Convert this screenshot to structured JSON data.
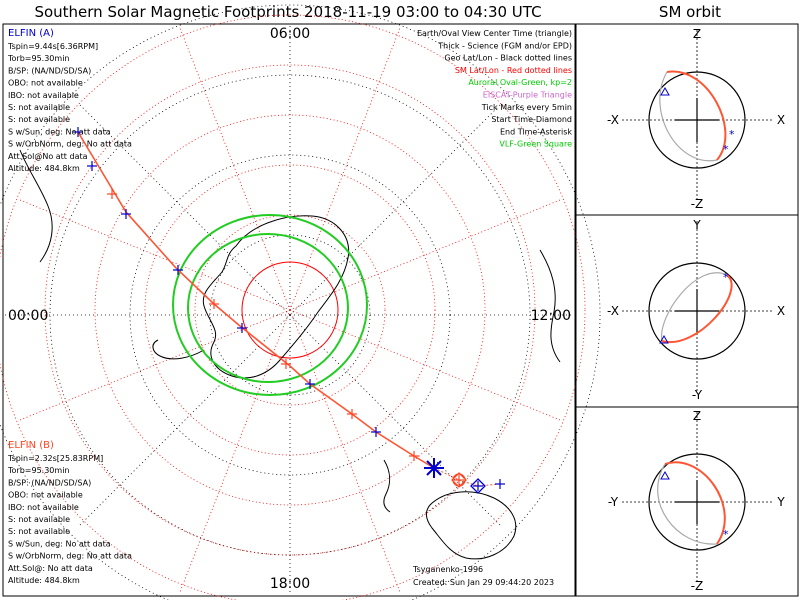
{
  "header": {
    "title": "Southern Solar Magnetic Footprints 2018-11-19 03:00 to 04:30 UTC",
    "right_title": "SM orbit"
  },
  "map": {
    "time_labels": {
      "top": "06:00",
      "left": "00:00",
      "right": "12:00",
      "bottom": "18:00"
    }
  },
  "elfin_a": {
    "title": "ELFIN (A)",
    "lines": [
      "Tspin=9.44s[6.36RPM]",
      "Torb=95.30min",
      "B/SP: (NA/ND/SD/SA)",
      "OBO: not available",
      "IBO: not available",
      "S: not available",
      "S: not available",
      "S w/Sun, deg: No att data",
      "S w/OrbNorm, deg: No att data",
      "Att.Sol@No att data",
      "Altitude: 484.8km"
    ]
  },
  "elfin_b": {
    "title": "ELFIN (B)",
    "lines": [
      "Tspin=2.32s[25.83RPM]",
      "Torb=95.30min",
      "B/SP: (NA/ND/SD/SA)",
      "OBO: not available",
      "IBO: not available",
      "S: not available",
      "S: not available",
      "S w/Sun, deg: No att data",
      "S w/OrbNorm, deg: No att data",
      "Att.Sol@: No att data",
      "Altitude: 484.8km"
    ]
  },
  "legend": [
    {
      "text": "Earth/Oval View Center Time (triangle)",
      "color": "#000000"
    },
    {
      "text": "Thick - Science (FGM and/or EPD)",
      "color": "#000000"
    },
    {
      "text": "Geo Lat/Lon - Black dotted lines",
      "color": "#000000"
    },
    {
      "text": "SM Lat/Lon - Red dotted lines",
      "color": "#ff0000"
    },
    {
      "text": "Auroral Oval-Green, kp=2",
      "color": "#00cc00"
    },
    {
      "text": "EISCAT-Purple Triangle",
      "color": "#cc66cc"
    },
    {
      "text": "Tick Marks every 5min",
      "color": "#000000"
    },
    {
      "text": "Start Time-Diamond",
      "color": "#000000"
    },
    {
      "text": "End Time-Asterisk",
      "color": "#000000"
    },
    {
      "text": "VLF-Green Square",
      "color": "#00cc00"
    }
  ],
  "footer": {
    "credit": "Tsyganenko-1996",
    "created": "Created: Sun Jan 29 09:44:20 2023"
  },
  "orbit_panels": [
    {
      "top": "Z",
      "bottom": "-Z",
      "left": "-X",
      "right": "X"
    },
    {
      "top": "Y",
      "bottom": "-Y",
      "left": "-X",
      "right": "X"
    },
    {
      "top": "Z",
      "bottom": "-Z",
      "left": "-Y",
      "right": "Y"
    }
  ],
  "colors": {
    "elfin_a": "#0000cc",
    "elfin_b": "#ff4422",
    "track": "#ff5533",
    "sm_grid": "#ff0000",
    "oval": "#00cc00",
    "orbit_gray": "#aaaaaa"
  }
}
